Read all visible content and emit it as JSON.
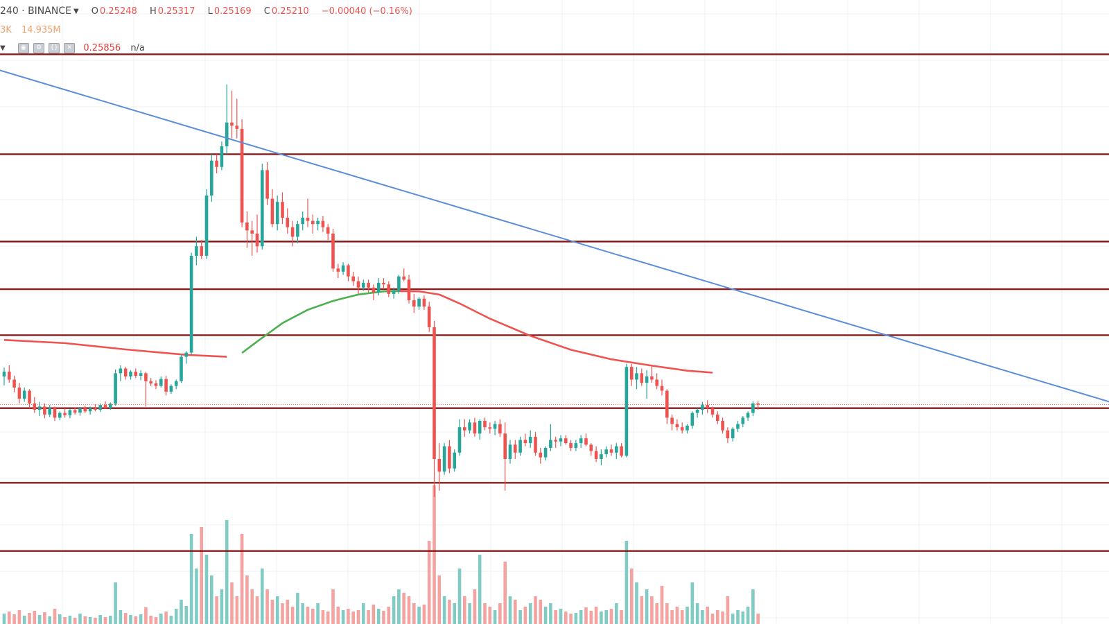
{
  "header": {
    "symbol": "240 · BINANCE",
    "open_label": "O",
    "open": "0.25248",
    "high_label": "H",
    "high": "0.25317",
    "low_label": "L",
    "low": "0.25169",
    "close_label": "C",
    "close": "0.25210",
    "change": "−0.00040 (−0.16%)",
    "volume_left": "3K",
    "volume_right": "14.935M",
    "ma_value": "0.25856",
    "na": "n/a"
  },
  "colors": {
    "up": "#26a69a",
    "down": "#ef5350",
    "vol_up": "#80cbc4",
    "vol_down": "#f4a3a1",
    "level_line": "#8b1a1a",
    "trend_line": "#5b8dd9",
    "ma_red": "#ef5350",
    "ma_green": "#4caf50",
    "grid": "#eef1f4"
  },
  "chart_data": {
    "type": "candlestick",
    "horizontal_levels": [
      0.3325,
      0.301,
      0.2735,
      0.2585,
      0.244,
      0.221,
      0.1975,
      0.176
    ],
    "trendline": {
      "from_index": -2,
      "from_price": 0.328,
      "to_index": 221,
      "to_price": 0.2218
    },
    "ma": [
      {
        "i": 0,
        "v": 0.2425
      },
      {
        "i": 12,
        "v": 0.2415
      },
      {
        "i": 24,
        "v": 0.2395
      },
      {
        "i": 36,
        "v": 0.2378
      },
      {
        "i": 44,
        "v": 0.2372
      },
      {
        "i": 47,
        "v": 0.2384
      },
      {
        "i": 50,
        "v": 0.242
      },
      {
        "i": 55,
        "v": 0.2478
      },
      {
        "i": 60,
        "v": 0.252
      },
      {
        "i": 65,
        "v": 0.2548
      },
      {
        "i": 70,
        "v": 0.2568
      },
      {
        "i": 75,
        "v": 0.2578
      },
      {
        "i": 78,
        "v": 0.2579
      },
      {
        "i": 82,
        "v": 0.2578
      },
      {
        "i": 86,
        "v": 0.2568
      },
      {
        "i": 90,
        "v": 0.254
      },
      {
        "i": 96,
        "v": 0.2492
      },
      {
        "i": 104,
        "v": 0.2438
      },
      {
        "i": 112,
        "v": 0.2394
      },
      {
        "i": 120,
        "v": 0.2364
      },
      {
        "i": 128,
        "v": 0.2344
      },
      {
        "i": 135,
        "v": 0.2328
      },
      {
        "i": 140,
        "v": 0.2322
      }
    ],
    "ma_green_range": [
      45,
      78
    ],
    "candles": [
      [
        0.231,
        0.2338,
        0.2282,
        0.2325,
        1.5
      ],
      [
        0.2325,
        0.2345,
        0.229,
        0.23,
        1.8
      ],
      [
        0.23,
        0.2312,
        0.226,
        0.2275,
        1.4
      ],
      [
        0.2275,
        0.229,
        0.2225,
        0.224,
        2.0
      ],
      [
        0.224,
        0.2275,
        0.223,
        0.2265,
        1.2
      ],
      [
        0.2265,
        0.227,
        0.221,
        0.2225,
        1.6
      ],
      [
        0.2225,
        0.2245,
        0.2195,
        0.2205,
        1.9
      ],
      [
        0.2205,
        0.223,
        0.2185,
        0.2215,
        1.3
      ],
      [
        0.2215,
        0.2225,
        0.2178,
        0.219,
        1.7
      ],
      [
        0.219,
        0.222,
        0.2182,
        0.221,
        1.1
      ],
      [
        0.221,
        0.2215,
        0.217,
        0.218,
        2.2
      ],
      [
        0.218,
        0.22,
        0.2172,
        0.2195,
        1.4
      ],
      [
        0.2195,
        0.221,
        0.218,
        0.2188,
        1.0
      ],
      [
        0.2188,
        0.2208,
        0.2178,
        0.2204,
        1.2
      ],
      [
        0.2204,
        0.2212,
        0.219,
        0.2196,
        0.9
      ],
      [
        0.2196,
        0.2214,
        0.2186,
        0.221,
        1.5
      ],
      [
        0.221,
        0.2218,
        0.2195,
        0.22,
        1.1
      ],
      [
        0.22,
        0.2215,
        0.219,
        0.221,
        1.0
      ],
      [
        0.221,
        0.2222,
        0.22,
        0.2205,
        0.9
      ],
      [
        0.2205,
        0.2225,
        0.2198,
        0.222,
        1.3
      ],
      [
        0.222,
        0.2232,
        0.2208,
        0.221,
        1.0
      ],
      [
        0.221,
        0.2228,
        0.2205,
        0.2224,
        1.2
      ],
      [
        0.2224,
        0.2332,
        0.2218,
        0.232,
        6.0
      ],
      [
        0.232,
        0.2345,
        0.2295,
        0.2335,
        2.0
      ],
      [
        0.2335,
        0.234,
        0.23,
        0.231,
        1.6
      ],
      [
        0.231,
        0.233,
        0.23,
        0.2325,
        1.3
      ],
      [
        0.2325,
        0.2335,
        0.2305,
        0.2312,
        1.1
      ],
      [
        0.2312,
        0.233,
        0.2298,
        0.232,
        1.4
      ],
      [
        0.232,
        0.2325,
        0.2215,
        0.2295,
        2.4
      ],
      [
        0.2295,
        0.2305,
        0.228,
        0.2288,
        1.2
      ],
      [
        0.2288,
        0.2298,
        0.227,
        0.228,
        1.0
      ],
      [
        0.228,
        0.231,
        0.2275,
        0.2302,
        1.5
      ],
      [
        0.2302,
        0.2312,
        0.225,
        0.2262,
        1.8
      ],
      [
        0.2262,
        0.2285,
        0.2255,
        0.228,
        1.2
      ],
      [
        0.228,
        0.23,
        0.227,
        0.2295,
        2.2
      ],
      [
        0.2295,
        0.238,
        0.229,
        0.2372,
        3.5
      ],
      [
        0.2372,
        0.239,
        0.235,
        0.2385,
        2.6
      ],
      [
        0.2385,
        0.27,
        0.238,
        0.269,
        13.0
      ],
      [
        0.269,
        0.275,
        0.266,
        0.272,
        8.0
      ],
      [
        0.272,
        0.274,
        0.268,
        0.269,
        14.0
      ],
      [
        0.269,
        0.29,
        0.268,
        0.288,
        10.0
      ],
      [
        0.288,
        0.301,
        0.286,
        0.299,
        7.0
      ],
      [
        0.299,
        0.301,
        0.295,
        0.297,
        4.0
      ],
      [
        0.297,
        0.305,
        0.296,
        0.3035,
        5.0
      ],
      [
        0.3035,
        0.323,
        0.301,
        0.311,
        15.0
      ],
      [
        0.311,
        0.321,
        0.306,
        0.31,
        6.0
      ],
      [
        0.31,
        0.3185,
        0.306,
        0.309,
        4.0
      ],
      [
        0.309,
        0.312,
        0.278,
        0.2795,
        13.0
      ],
      [
        0.2795,
        0.283,
        0.2715,
        0.277,
        7.0
      ],
      [
        0.277,
        0.28,
        0.269,
        0.276,
        5.0
      ],
      [
        0.276,
        0.282,
        0.27,
        0.272,
        4.0
      ],
      [
        0.272,
        0.298,
        0.271,
        0.296,
        8.0
      ],
      [
        0.296,
        0.2985,
        0.285,
        0.287,
        5.0
      ],
      [
        0.287,
        0.29,
        0.278,
        0.279,
        3.5
      ],
      [
        0.279,
        0.288,
        0.277,
        0.286,
        4.0
      ],
      [
        0.286,
        0.289,
        0.279,
        0.281,
        3.0
      ],
      [
        0.281,
        0.284,
        0.276,
        0.278,
        3.5
      ],
      [
        0.278,
        0.28,
        0.272,
        0.275,
        2.5
      ],
      [
        0.275,
        0.28,
        0.273,
        0.279,
        4.5
      ],
      [
        0.279,
        0.283,
        0.277,
        0.281,
        3.0
      ],
      [
        0.281,
        0.287,
        0.278,
        0.28,
        2.5
      ],
      [
        0.28,
        0.282,
        0.276,
        0.279,
        2.2
      ],
      [
        0.279,
        0.281,
        0.277,
        0.28,
        3.0
      ],
      [
        0.28,
        0.2815,
        0.2765,
        0.278,
        2.0
      ],
      [
        0.278,
        0.279,
        0.274,
        0.276,
        1.8
      ],
      [
        0.276,
        0.2775,
        0.264,
        0.265,
        5.0
      ],
      [
        0.265,
        0.2665,
        0.262,
        0.264,
        2.5
      ],
      [
        0.264,
        0.267,
        0.263,
        0.266,
        2.0
      ],
      [
        0.266,
        0.2665,
        0.261,
        0.2625,
        2.2
      ],
      [
        0.2625,
        0.264,
        0.2595,
        0.261,
        1.8
      ],
      [
        0.261,
        0.2625,
        0.257,
        0.259,
        2.0
      ],
      [
        0.259,
        0.2615,
        0.258,
        0.2605,
        3.0
      ],
      [
        0.2605,
        0.2615,
        0.2575,
        0.259,
        2.0
      ],
      [
        0.259,
        0.26,
        0.255,
        0.2575,
        2.8
      ],
      [
        0.2575,
        0.262,
        0.2565,
        0.2605,
        2.2
      ],
      [
        0.2605,
        0.262,
        0.2585,
        0.26,
        1.9
      ],
      [
        0.26,
        0.261,
        0.256,
        0.257,
        2.5
      ],
      [
        0.257,
        0.259,
        0.2555,
        0.258,
        4.0
      ],
      [
        0.258,
        0.263,
        0.257,
        0.2625,
        5.0
      ],
      [
        0.2625,
        0.265,
        0.261,
        0.2615,
        4.5
      ],
      [
        0.2615,
        0.263,
        0.254,
        0.255,
        4.0
      ],
      [
        0.255,
        0.257,
        0.251,
        0.253,
        3.0
      ],
      [
        0.253,
        0.256,
        0.252,
        0.2555,
        2.5
      ],
      [
        0.2555,
        0.2565,
        0.252,
        0.253,
        2.8
      ],
      [
        0.253,
        0.2545,
        0.245,
        0.2465,
        12.0
      ],
      [
        0.2465,
        0.2485,
        0.193,
        0.205,
        20.0
      ],
      [
        0.205,
        0.21,
        0.195,
        0.201,
        7.0
      ],
      [
        0.201,
        0.21,
        0.2,
        0.209,
        4.0
      ],
      [
        0.209,
        0.211,
        0.2005,
        0.202,
        3.5
      ],
      [
        0.202,
        0.208,
        0.201,
        0.207,
        3.0
      ],
      [
        0.207,
        0.2175,
        0.206,
        0.215,
        8.0
      ],
      [
        0.215,
        0.2175,
        0.212,
        0.214,
        4.0
      ],
      [
        0.214,
        0.2175,
        0.213,
        0.2165,
        3.0
      ],
      [
        0.2165,
        0.218,
        0.212,
        0.213,
        5.0
      ],
      [
        0.213,
        0.2175,
        0.211,
        0.217,
        10.0
      ],
      [
        0.217,
        0.218,
        0.214,
        0.215,
        3.0
      ],
      [
        0.215,
        0.2165,
        0.213,
        0.2145,
        2.5
      ],
      [
        0.2145,
        0.217,
        0.2125,
        0.216,
        2.0
      ],
      [
        0.216,
        0.2175,
        0.212,
        0.213,
        3.0
      ],
      [
        0.213,
        0.2165,
        0.195,
        0.205,
        9.0
      ],
      [
        0.205,
        0.211,
        0.2035,
        0.2095,
        4.0
      ],
      [
        0.2095,
        0.211,
        0.205,
        0.207,
        3.5
      ],
      [
        0.207,
        0.212,
        0.206,
        0.211,
        2.0
      ],
      [
        0.211,
        0.213,
        0.209,
        0.21,
        2.5
      ],
      [
        0.21,
        0.214,
        0.2085,
        0.212,
        3.0
      ],
      [
        0.212,
        0.2135,
        0.206,
        0.207,
        4.0
      ],
      [
        0.207,
        0.2085,
        0.2035,
        0.2055,
        3.5
      ],
      [
        0.2055,
        0.209,
        0.2045,
        0.2085,
        2.5
      ],
      [
        0.2085,
        0.216,
        0.2075,
        0.211,
        3.0
      ],
      [
        0.211,
        0.212,
        0.2085,
        0.2105,
        2.0
      ],
      [
        0.2105,
        0.2125,
        0.209,
        0.2115,
        2.2
      ],
      [
        0.2115,
        0.2125,
        0.2095,
        0.21,
        1.8
      ],
      [
        0.21,
        0.211,
        0.2075,
        0.2085,
        1.5
      ],
      [
        0.2085,
        0.211,
        0.2075,
        0.21,
        1.6
      ],
      [
        0.21,
        0.2125,
        0.2085,
        0.2115,
        2.0
      ],
      [
        0.2115,
        0.213,
        0.209,
        0.2095,
        2.4
      ],
      [
        0.2095,
        0.21,
        0.206,
        0.2075,
        1.9
      ],
      [
        0.2075,
        0.209,
        0.204,
        0.205,
        2.5
      ],
      [
        0.205,
        0.208,
        0.203,
        0.2065,
        1.8
      ],
      [
        0.2065,
        0.209,
        0.2055,
        0.208,
        2.0
      ],
      [
        0.208,
        0.2095,
        0.206,
        0.207,
        2.2
      ],
      [
        0.207,
        0.21,
        0.205,
        0.209,
        3.0
      ],
      [
        0.209,
        0.21,
        0.2055,
        0.206,
        2.0
      ],
      [
        0.206,
        0.235,
        0.2055,
        0.234,
        12.0
      ],
      [
        0.234,
        0.235,
        0.228,
        0.23,
        8.0
      ],
      [
        0.23,
        0.234,
        0.227,
        0.232,
        6.0
      ],
      [
        0.232,
        0.2335,
        0.228,
        0.229,
        4.0
      ],
      [
        0.229,
        0.233,
        0.224,
        0.231,
        5.0
      ],
      [
        0.231,
        0.2345,
        0.229,
        0.23,
        4.0
      ],
      [
        0.23,
        0.232,
        0.227,
        0.228,
        3.0
      ],
      [
        0.228,
        0.23,
        0.225,
        0.2265,
        5.5
      ],
      [
        0.2265,
        0.227,
        0.216,
        0.218,
        3.0
      ],
      [
        0.218,
        0.219,
        0.214,
        0.216,
        2.0
      ],
      [
        0.216,
        0.2175,
        0.214,
        0.215,
        2.5
      ],
      [
        0.215,
        0.2165,
        0.213,
        0.214,
        2.0
      ],
      [
        0.214,
        0.216,
        0.213,
        0.2155,
        2.5
      ],
      [
        0.2155,
        0.22,
        0.2145,
        0.2195,
        6.0
      ],
      [
        0.2195,
        0.221,
        0.218,
        0.2205,
        3.0
      ],
      [
        0.2205,
        0.223,
        0.219,
        0.222,
        2.0
      ],
      [
        0.222,
        0.2235,
        0.2195,
        0.221,
        2.5
      ],
      [
        0.221,
        0.2215,
        0.218,
        0.219,
        1.5
      ],
      [
        0.219,
        0.22,
        0.216,
        0.217,
        2.0
      ],
      [
        0.217,
        0.218,
        0.213,
        0.214,
        1.8
      ],
      [
        0.214,
        0.215,
        0.21,
        0.2115,
        4.0
      ],
      [
        0.2115,
        0.215,
        0.2105,
        0.2145,
        1.5
      ],
      [
        0.2145,
        0.217,
        0.2135,
        0.216,
        2.0
      ],
      [
        0.216,
        0.2185,
        0.215,
        0.218,
        1.8
      ],
      [
        0.218,
        0.22,
        0.217,
        0.2195,
        2.5
      ],
      [
        0.2195,
        0.2232,
        0.2185,
        0.2225,
        5.0
      ],
      [
        0.2225,
        0.2232,
        0.2205,
        0.2221,
        1.5
      ]
    ]
  }
}
